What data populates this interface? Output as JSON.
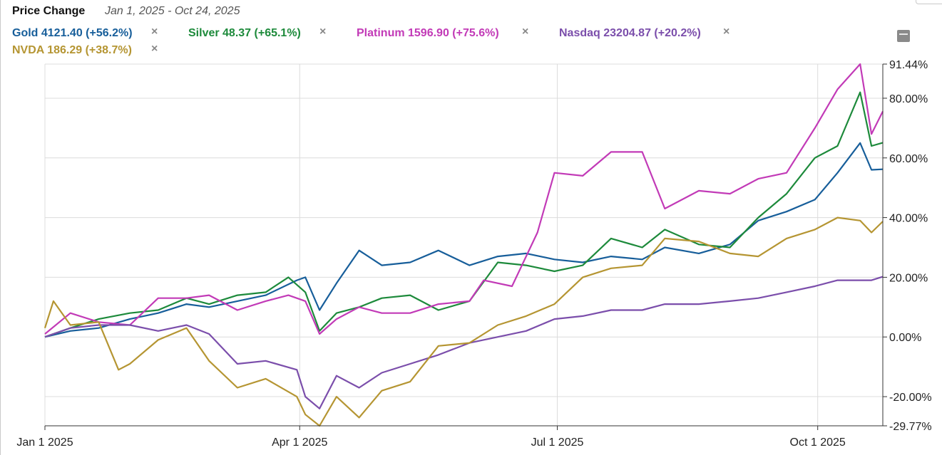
{
  "header": {
    "title": "Price Change",
    "range": "Jan 1, 2025 - Oct 24, 2025"
  },
  "legend": [
    {
      "label": "Gold 4121.40 (+56.2%)",
      "color": "#175e9a"
    },
    {
      "label": "Silver 48.37 (+65.1%)",
      "color": "#1d8a3b"
    },
    {
      "label": "Platinum 1596.90 (+75.6%)",
      "color": "#c23ab7"
    },
    {
      "label": "Nasdaq 23204.87 (+20.2%)",
      "color": "#7b4eab"
    },
    {
      "label": "NVDA 186.29 (+38.7%)",
      "color": "#b59532"
    }
  ],
  "remove_glyph": "×",
  "chart_data": {
    "type": "line",
    "y_tick_labels": [
      "91.44%",
      "80.00%",
      "60.00%",
      "40.00%",
      "20.00%",
      "0.00%",
      "-20.00%",
      "-29.77%"
    ],
    "x_tick_labels": [
      "Jan 1 2025",
      "Apr 1 2025",
      "Jul 1 2025",
      "Oct 1 2025"
    ],
    "ylim": [
      -29.77,
      91.44
    ],
    "xlim": [
      "2025-01-01",
      "2025-10-24"
    ],
    "grid": true,
    "x_ticks": [
      "2025-01-01",
      "2025-04-01",
      "2025-07-01",
      "2025-10-01"
    ],
    "y_ticks": [
      91.44,
      80,
      60,
      40,
      20,
      0,
      -20,
      -29.77
    ],
    "series": [
      {
        "name": "Gold",
        "color": "#175e9a",
        "points": [
          [
            "2025-01-01",
            0
          ],
          [
            "2025-01-10",
            2
          ],
          [
            "2025-01-20",
            3
          ],
          [
            "2025-01-31",
            6
          ],
          [
            "2025-02-10",
            8
          ],
          [
            "2025-02-20",
            11
          ],
          [
            "2025-02-28",
            10
          ],
          [
            "2025-03-10",
            12
          ],
          [
            "2025-03-20",
            14
          ],
          [
            "2025-03-31",
            19
          ],
          [
            "2025-04-03",
            20
          ],
          [
            "2025-04-08",
            9
          ],
          [
            "2025-04-14",
            18
          ],
          [
            "2025-04-22",
            29
          ],
          [
            "2025-04-30",
            24
          ],
          [
            "2025-05-10",
            25
          ],
          [
            "2025-05-20",
            29
          ],
          [
            "2025-05-31",
            24
          ],
          [
            "2025-06-10",
            27
          ],
          [
            "2025-06-20",
            28
          ],
          [
            "2025-06-30",
            26
          ],
          [
            "2025-07-10",
            25
          ],
          [
            "2025-07-20",
            27
          ],
          [
            "2025-07-31",
            26
          ],
          [
            "2025-08-08",
            30
          ],
          [
            "2025-08-20",
            28
          ],
          [
            "2025-08-31",
            31
          ],
          [
            "2025-09-10",
            39
          ],
          [
            "2025-09-20",
            42
          ],
          [
            "2025-09-30",
            46
          ],
          [
            "2025-10-08",
            55
          ],
          [
            "2025-10-16",
            65
          ],
          [
            "2025-10-20",
            56
          ],
          [
            "2025-10-24",
            56.2
          ]
        ]
      },
      {
        "name": "Silver",
        "color": "#1d8a3b",
        "points": [
          [
            "2025-01-01",
            0
          ],
          [
            "2025-01-10",
            3
          ],
          [
            "2025-01-20",
            6
          ],
          [
            "2025-01-31",
            8
          ],
          [
            "2025-02-10",
            9
          ],
          [
            "2025-02-20",
            13
          ],
          [
            "2025-02-28",
            11
          ],
          [
            "2025-03-10",
            14
          ],
          [
            "2025-03-20",
            15
          ],
          [
            "2025-03-28",
            20
          ],
          [
            "2025-04-03",
            15
          ],
          [
            "2025-04-08",
            2
          ],
          [
            "2025-04-14",
            8
          ],
          [
            "2025-04-22",
            10
          ],
          [
            "2025-04-30",
            13
          ],
          [
            "2025-05-10",
            14
          ],
          [
            "2025-05-20",
            9
          ],
          [
            "2025-05-31",
            12
          ],
          [
            "2025-06-10",
            25
          ],
          [
            "2025-06-20",
            24
          ],
          [
            "2025-06-30",
            22
          ],
          [
            "2025-07-10",
            24
          ],
          [
            "2025-07-20",
            33
          ],
          [
            "2025-07-31",
            30
          ],
          [
            "2025-08-08",
            36
          ],
          [
            "2025-08-20",
            31
          ],
          [
            "2025-08-31",
            30
          ],
          [
            "2025-09-10",
            40
          ],
          [
            "2025-09-20",
            48
          ],
          [
            "2025-09-30",
            60
          ],
          [
            "2025-10-08",
            64
          ],
          [
            "2025-10-16",
            82
          ],
          [
            "2025-10-20",
            64
          ],
          [
            "2025-10-24",
            65.1
          ]
        ]
      },
      {
        "name": "Platinum",
        "color": "#c23ab7",
        "points": [
          [
            "2025-01-01",
            1
          ],
          [
            "2025-01-10",
            8
          ],
          [
            "2025-01-20",
            5
          ],
          [
            "2025-01-31",
            4
          ],
          [
            "2025-02-10",
            13
          ],
          [
            "2025-02-20",
            13
          ],
          [
            "2025-02-28",
            14
          ],
          [
            "2025-03-10",
            9
          ],
          [
            "2025-03-20",
            12
          ],
          [
            "2025-03-28",
            14
          ],
          [
            "2025-04-03",
            12
          ],
          [
            "2025-04-08",
            1
          ],
          [
            "2025-04-14",
            6
          ],
          [
            "2025-04-22",
            10
          ],
          [
            "2025-04-30",
            8
          ],
          [
            "2025-05-10",
            8
          ],
          [
            "2025-05-20",
            11
          ],
          [
            "2025-05-31",
            12
          ],
          [
            "2025-06-05",
            19
          ],
          [
            "2025-06-15",
            17
          ],
          [
            "2025-06-24",
            35
          ],
          [
            "2025-06-30",
            55
          ],
          [
            "2025-07-10",
            54
          ],
          [
            "2025-07-20",
            62
          ],
          [
            "2025-07-31",
            62
          ],
          [
            "2025-08-08",
            43
          ],
          [
            "2025-08-20",
            49
          ],
          [
            "2025-08-31",
            48
          ],
          [
            "2025-09-10",
            53
          ],
          [
            "2025-09-20",
            55
          ],
          [
            "2025-09-30",
            70
          ],
          [
            "2025-10-08",
            83
          ],
          [
            "2025-10-16",
            91.44
          ],
          [
            "2025-10-20",
            68
          ],
          [
            "2025-10-24",
            75.6
          ]
        ]
      },
      {
        "name": "Nasdaq",
        "color": "#7b4eab",
        "points": [
          [
            "2025-01-01",
            0
          ],
          [
            "2025-01-10",
            3
          ],
          [
            "2025-01-20",
            4
          ],
          [
            "2025-01-31",
            4
          ],
          [
            "2025-02-10",
            2
          ],
          [
            "2025-02-20",
            4
          ],
          [
            "2025-02-28",
            1
          ],
          [
            "2025-03-10",
            -9
          ],
          [
            "2025-03-20",
            -8
          ],
          [
            "2025-03-31",
            -11
          ],
          [
            "2025-04-03",
            -20
          ],
          [
            "2025-04-08",
            -24
          ],
          [
            "2025-04-14",
            -13
          ],
          [
            "2025-04-22",
            -17
          ],
          [
            "2025-04-30",
            -12
          ],
          [
            "2025-05-10",
            -9
          ],
          [
            "2025-05-20",
            -6
          ],
          [
            "2025-05-31",
            -2
          ],
          [
            "2025-06-10",
            0
          ],
          [
            "2025-06-20",
            2
          ],
          [
            "2025-06-30",
            6
          ],
          [
            "2025-07-10",
            7
          ],
          [
            "2025-07-20",
            9
          ],
          [
            "2025-07-31",
            9
          ],
          [
            "2025-08-08",
            11
          ],
          [
            "2025-08-20",
            11
          ],
          [
            "2025-08-31",
            12
          ],
          [
            "2025-09-10",
            13
          ],
          [
            "2025-09-20",
            15
          ],
          [
            "2025-09-30",
            17
          ],
          [
            "2025-10-08",
            19
          ],
          [
            "2025-10-16",
            19
          ],
          [
            "2025-10-20",
            19
          ],
          [
            "2025-10-24",
            20.2
          ]
        ]
      },
      {
        "name": "NVDA",
        "color": "#b59532",
        "points": [
          [
            "2025-01-01",
            3
          ],
          [
            "2025-01-04",
            12
          ],
          [
            "2025-01-10",
            4
          ],
          [
            "2025-01-20",
            5
          ],
          [
            "2025-01-27",
            -11
          ],
          [
            "2025-01-31",
            -9
          ],
          [
            "2025-02-10",
            -1
          ],
          [
            "2025-02-20",
            3
          ],
          [
            "2025-02-28",
            -8
          ],
          [
            "2025-03-10",
            -17
          ],
          [
            "2025-03-20",
            -14
          ],
          [
            "2025-03-31",
            -20
          ],
          [
            "2025-04-03",
            -26
          ],
          [
            "2025-04-08",
            -29.77
          ],
          [
            "2025-04-14",
            -20
          ],
          [
            "2025-04-22",
            -27
          ],
          [
            "2025-04-30",
            -18
          ],
          [
            "2025-05-10",
            -15
          ],
          [
            "2025-05-20",
            -3
          ],
          [
            "2025-05-31",
            -2
          ],
          [
            "2025-06-10",
            4
          ],
          [
            "2025-06-20",
            7
          ],
          [
            "2025-06-30",
            11
          ],
          [
            "2025-07-10",
            20
          ],
          [
            "2025-07-20",
            23
          ],
          [
            "2025-07-31",
            24
          ],
          [
            "2025-08-08",
            33
          ],
          [
            "2025-08-20",
            32
          ],
          [
            "2025-08-31",
            28
          ],
          [
            "2025-09-10",
            27
          ],
          [
            "2025-09-20",
            33
          ],
          [
            "2025-09-30",
            36
          ],
          [
            "2025-10-08",
            40
          ],
          [
            "2025-10-16",
            39
          ],
          [
            "2025-10-20",
            35
          ],
          [
            "2025-10-24",
            38.7
          ]
        ]
      }
    ]
  }
}
